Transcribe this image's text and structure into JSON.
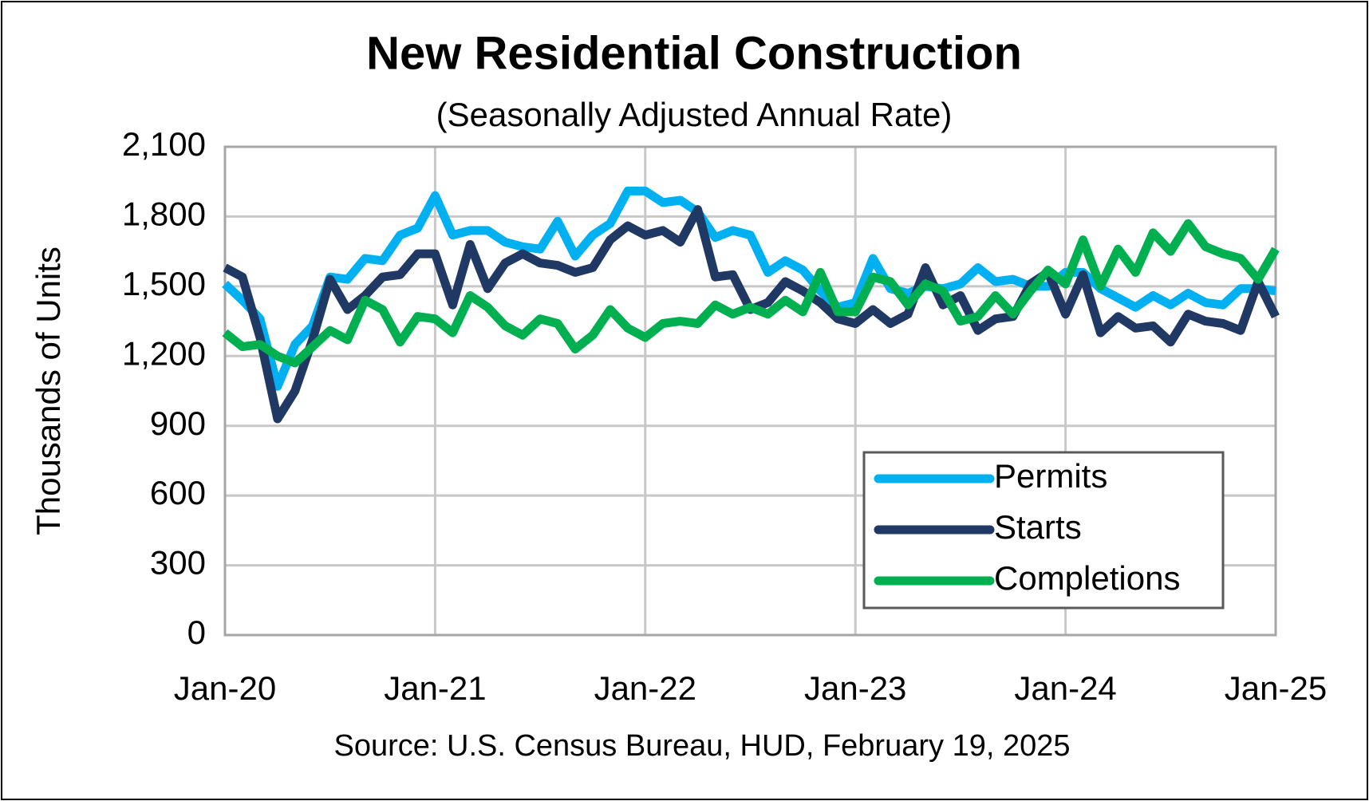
{
  "chart_data": {
    "type": "line",
    "title": "New Residential Construction",
    "subtitle": "(Seasonally Adjusted Annual Rate)",
    "y_label": "Thousands of Units",
    "source": "Source:  U.S. Census Bureau, HUD, February 19, 2025",
    "categories": [
      "Jan-20",
      null,
      null,
      null,
      null,
      null,
      null,
      null,
      null,
      null,
      null,
      null,
      "Jan-21",
      null,
      null,
      null,
      null,
      null,
      null,
      null,
      null,
      null,
      null,
      null,
      "Jan-22",
      null,
      null,
      null,
      null,
      null,
      null,
      null,
      null,
      null,
      null,
      null,
      "Jan-23",
      null,
      null,
      null,
      null,
      null,
      null,
      null,
      null,
      null,
      null,
      null,
      "Jan-24",
      null,
      null,
      null,
      null,
      null,
      null,
      null,
      null,
      null,
      null,
      null,
      "Jan-25"
    ],
    "series": [
      {
        "name": "Permits",
        "color": "#00b0f0",
        "values": [
          1510,
          1440,
          1360,
          1070,
          1250,
          1330,
          1540,
          1530,
          1620,
          1610,
          1720,
          1750,
          1890,
          1720,
          1740,
          1740,
          1690,
          1670,
          1660,
          1780,
          1630,
          1720,
          1770,
          1910,
          1910,
          1860,
          1870,
          1820,
          1710,
          1740,
          1720,
          1560,
          1610,
          1570,
          1480,
          1410,
          1430,
          1620,
          1490,
          1470,
          1500,
          1490,
          1510,
          1580,
          1520,
          1530,
          1500,
          1500,
          1560,
          1560,
          1490,
          1450,
          1410,
          1460,
          1420,
          1470,
          1430,
          1420,
          1490,
          1490,
          1480
        ]
      },
      {
        "name": "Starts",
        "color": "#203864",
        "values": [
          1580,
          1540,
          1280,
          930,
          1050,
          1270,
          1530,
          1400,
          1460,
          1540,
          1550,
          1640,
          1640,
          1420,
          1680,
          1490,
          1600,
          1640,
          1600,
          1590,
          1560,
          1580,
          1700,
          1760,
          1720,
          1740,
          1690,
          1830,
          1540,
          1550,
          1400,
          1430,
          1520,
          1480,
          1430,
          1360,
          1340,
          1400,
          1340,
          1380,
          1580,
          1420,
          1460,
          1310,
          1360,
          1370,
          1510,
          1560,
          1380,
          1550,
          1300,
          1370,
          1320,
          1330,
          1260,
          1380,
          1350,
          1340,
          1310,
          1520,
          1370
        ]
      },
      {
        "name": "Completions",
        "color": "#00b050",
        "values": [
          1300,
          1240,
          1250,
          1200,
          1170,
          1240,
          1310,
          1270,
          1440,
          1400,
          1260,
          1370,
          1360,
          1300,
          1460,
          1410,
          1330,
          1290,
          1360,
          1340,
          1230,
          1290,
          1400,
          1320,
          1280,
          1340,
          1350,
          1340,
          1420,
          1380,
          1410,
          1380,
          1440,
          1390,
          1560,
          1390,
          1390,
          1540,
          1520,
          1420,
          1510,
          1480,
          1350,
          1370,
          1460,
          1380,
          1480,
          1570,
          1510,
          1700,
          1500,
          1660,
          1560,
          1730,
          1650,
          1770,
          1670,
          1640,
          1620,
          1530,
          1660
        ]
      }
    ],
    "ylim": [
      0,
      2100
    ],
    "yticks": [
      0,
      300,
      600,
      900,
      {
        "value": 1200,
        "label": "1,200"
      },
      {
        "value": 1500,
        "label": "1,500"
      },
      {
        "value": 1800,
        "label": "1,800"
      },
      {
        "value": 2100,
        "label": "2,100"
      }
    ],
    "grid": true,
    "legend": "lower right"
  }
}
